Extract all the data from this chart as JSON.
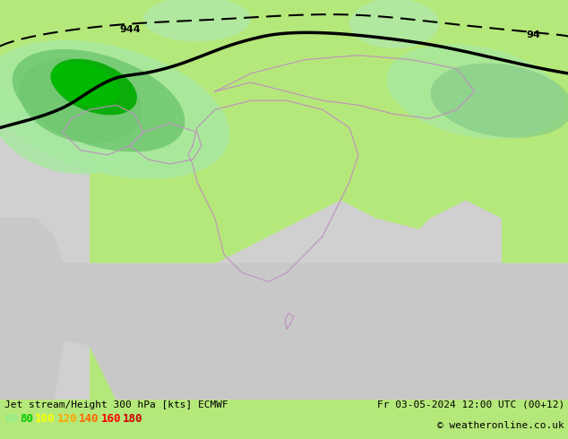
{
  "title_left": "Jet stream/Height 300 hPa [kts] ECMWF",
  "title_right": "Fr 03-05-2024 12:00 UTC (00+12)",
  "copyright": "© weatheronline.co.uk",
  "legend_values": [
    "60",
    "80",
    "100",
    "120",
    "140",
    "160",
    "180"
  ],
  "legend_colors": [
    "#90ee90",
    "#00cc00",
    "#ffff00",
    "#ffa500",
    "#ff4500",
    "#ff0000",
    "#800000"
  ],
  "bg_color": "#b5e87a",
  "ocean_color": "#d8d8d8",
  "land_color": "#b5e87a",
  "jet_color_60": "#a8e6a0",
  "jet_color_80": "#70c870",
  "jet_color_100": "#00aa00",
  "jet_color_120": "#00cc44",
  "contour_color": "#000000",
  "border_color": "#b0a0b0",
  "figsize": [
    6.34,
    4.9
  ],
  "dpi": 100,
  "bottom_bar_color": "#e8e8e8",
  "label_60_color": "#90ee90",
  "label_80_color": "#00cc00",
  "label_100_color": "#ffff00",
  "label_120_color": "#ffa500",
  "label_140_color": "#ff4500",
  "label_160_color": "#ff0000",
  "label_180_color": "#800000"
}
